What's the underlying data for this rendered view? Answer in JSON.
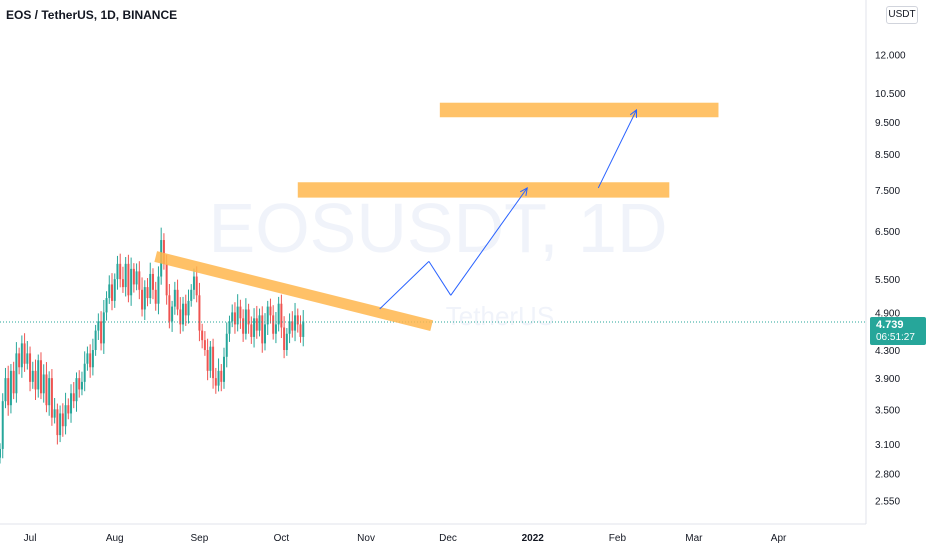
{
  "header": {
    "title": "EOS / TetherUS, 1D, BINANCE",
    "currency_button": "USDT"
  },
  "watermark": {
    "symbol": "EOSUSDT, 1D",
    "name": "TetherUS"
  },
  "price_tag": {
    "price": "4.739",
    "countdown": "06:51:27"
  },
  "colors": {
    "up": "#26a69a",
    "down": "#ef5350",
    "zone": "#ffb74d",
    "arrow": "#2962ff",
    "price_line": "#26a69a",
    "axis_text": "#131722"
  },
  "chart_data": {
    "type": "candlestick",
    "symbol": "EOS / TetherUS",
    "interval": "1D",
    "exchange": "BINANCE",
    "y_scale": "log",
    "ylim": [
      2.35,
      14.5
    ],
    "y_ticks": [
      "12.000",
      "10.500",
      "9.500",
      "8.500",
      "7.500",
      "6.500",
      "5.500",
      "4.900",
      "4.300",
      "3.900",
      "3.500",
      "3.100",
      "2.800",
      "2.550"
    ],
    "y_tick_values": [
      12.0,
      10.5,
      9.5,
      8.5,
      7.5,
      6.5,
      5.5,
      4.9,
      4.3,
      3.9,
      3.5,
      3.1,
      2.8,
      2.55
    ],
    "x_start": "2021-06-20",
    "x_end": "2022-05-03",
    "x_ticks": [
      {
        "label": "Jul",
        "date": "2021-07-01"
      },
      {
        "label": "Aug",
        "date": "2021-08-01"
      },
      {
        "label": "Sep",
        "date": "2021-09-01"
      },
      {
        "label": "Oct",
        "date": "2021-10-01"
      },
      {
        "label": "Nov",
        "date": "2021-11-01"
      },
      {
        "label": "Dec",
        "date": "2021-12-01"
      },
      {
        "label": "2022",
        "date": "2022-01-01",
        "bold": true
      },
      {
        "label": "Feb",
        "date": "2022-02-01"
      },
      {
        "label": "Mar",
        "date": "2022-03-01"
      },
      {
        "label": "Apr",
        "date": "2022-04-01"
      }
    ],
    "current_price": 4.739,
    "candles_start": "2021-06-20",
    "closes": [
      3.05,
      3.6,
      3.9,
      3.55,
      4.0,
      3.7,
      4.25,
      4.05,
      4.4,
      4.1,
      4.25,
      3.85,
      4.0,
      3.75,
      4.15,
      3.7,
      3.95,
      3.55,
      3.9,
      3.4,
      3.5,
      3.2,
      3.45,
      3.3,
      3.55,
      3.45,
      3.7,
      3.6,
      3.9,
      3.75,
      3.85,
      4.1,
      4.25,
      4.05,
      4.3,
      4.6,
      4.75,
      4.4,
      4.9,
      5.15,
      5.4,
      5.1,
      5.5,
      5.8,
      5.5,
      5.35,
      5.8,
      5.2,
      5.7,
      5.4,
      5.65,
      5.3,
      4.95,
      5.35,
      5.15,
      5.6,
      5.3,
      5.05,
      5.55,
      6.3,
      5.8,
      5.2,
      4.75,
      5.0,
      5.3,
      4.95,
      4.7,
      5.05,
      4.85,
      5.1,
      5.3,
      5.55,
      5.2,
      4.6,
      4.45,
      4.3,
      4.0,
      4.35,
      3.9,
      3.8,
      4.0,
      3.85,
      4.2,
      4.55,
      4.75,
      4.9,
      4.7,
      5.0,
      4.8,
      4.55,
      4.95,
      4.7,
      4.5,
      4.8,
      4.6,
      4.85,
      4.4,
      4.7,
      5.0,
      4.85,
      4.55,
      4.7,
      5.05,
      4.65,
      4.3,
      4.55,
      4.75,
      4.6,
      4.85,
      4.7,
      4.5,
      4.75
    ],
    "annotations": {
      "resistance_zones": [
        {
          "from": "2021-11-28",
          "to": "2022-03-10",
          "low": 9.65,
          "high": 10.15
        },
        {
          "from": "2021-10-07",
          "to": "2022-02-20",
          "low": 7.3,
          "high": 7.7
        }
      ],
      "descending_trendline": [
        {
          "date": "2021-08-16",
          "price": 5.95
        },
        {
          "date": "2021-11-25",
          "price": 4.68
        }
      ],
      "projected_path": [
        {
          "date": "2021-11-06",
          "price": 4.96
        },
        {
          "date": "2021-11-24",
          "price": 5.85
        },
        {
          "date": "2021-12-02",
          "price": 5.2
        },
        {
          "date": "2021-12-30",
          "price": 7.55
        },
        {
          "date": "2022-01-25",
          "price": 7.55
        },
        {
          "date": "2022-02-08",
          "price": 9.9
        }
      ]
    }
  }
}
